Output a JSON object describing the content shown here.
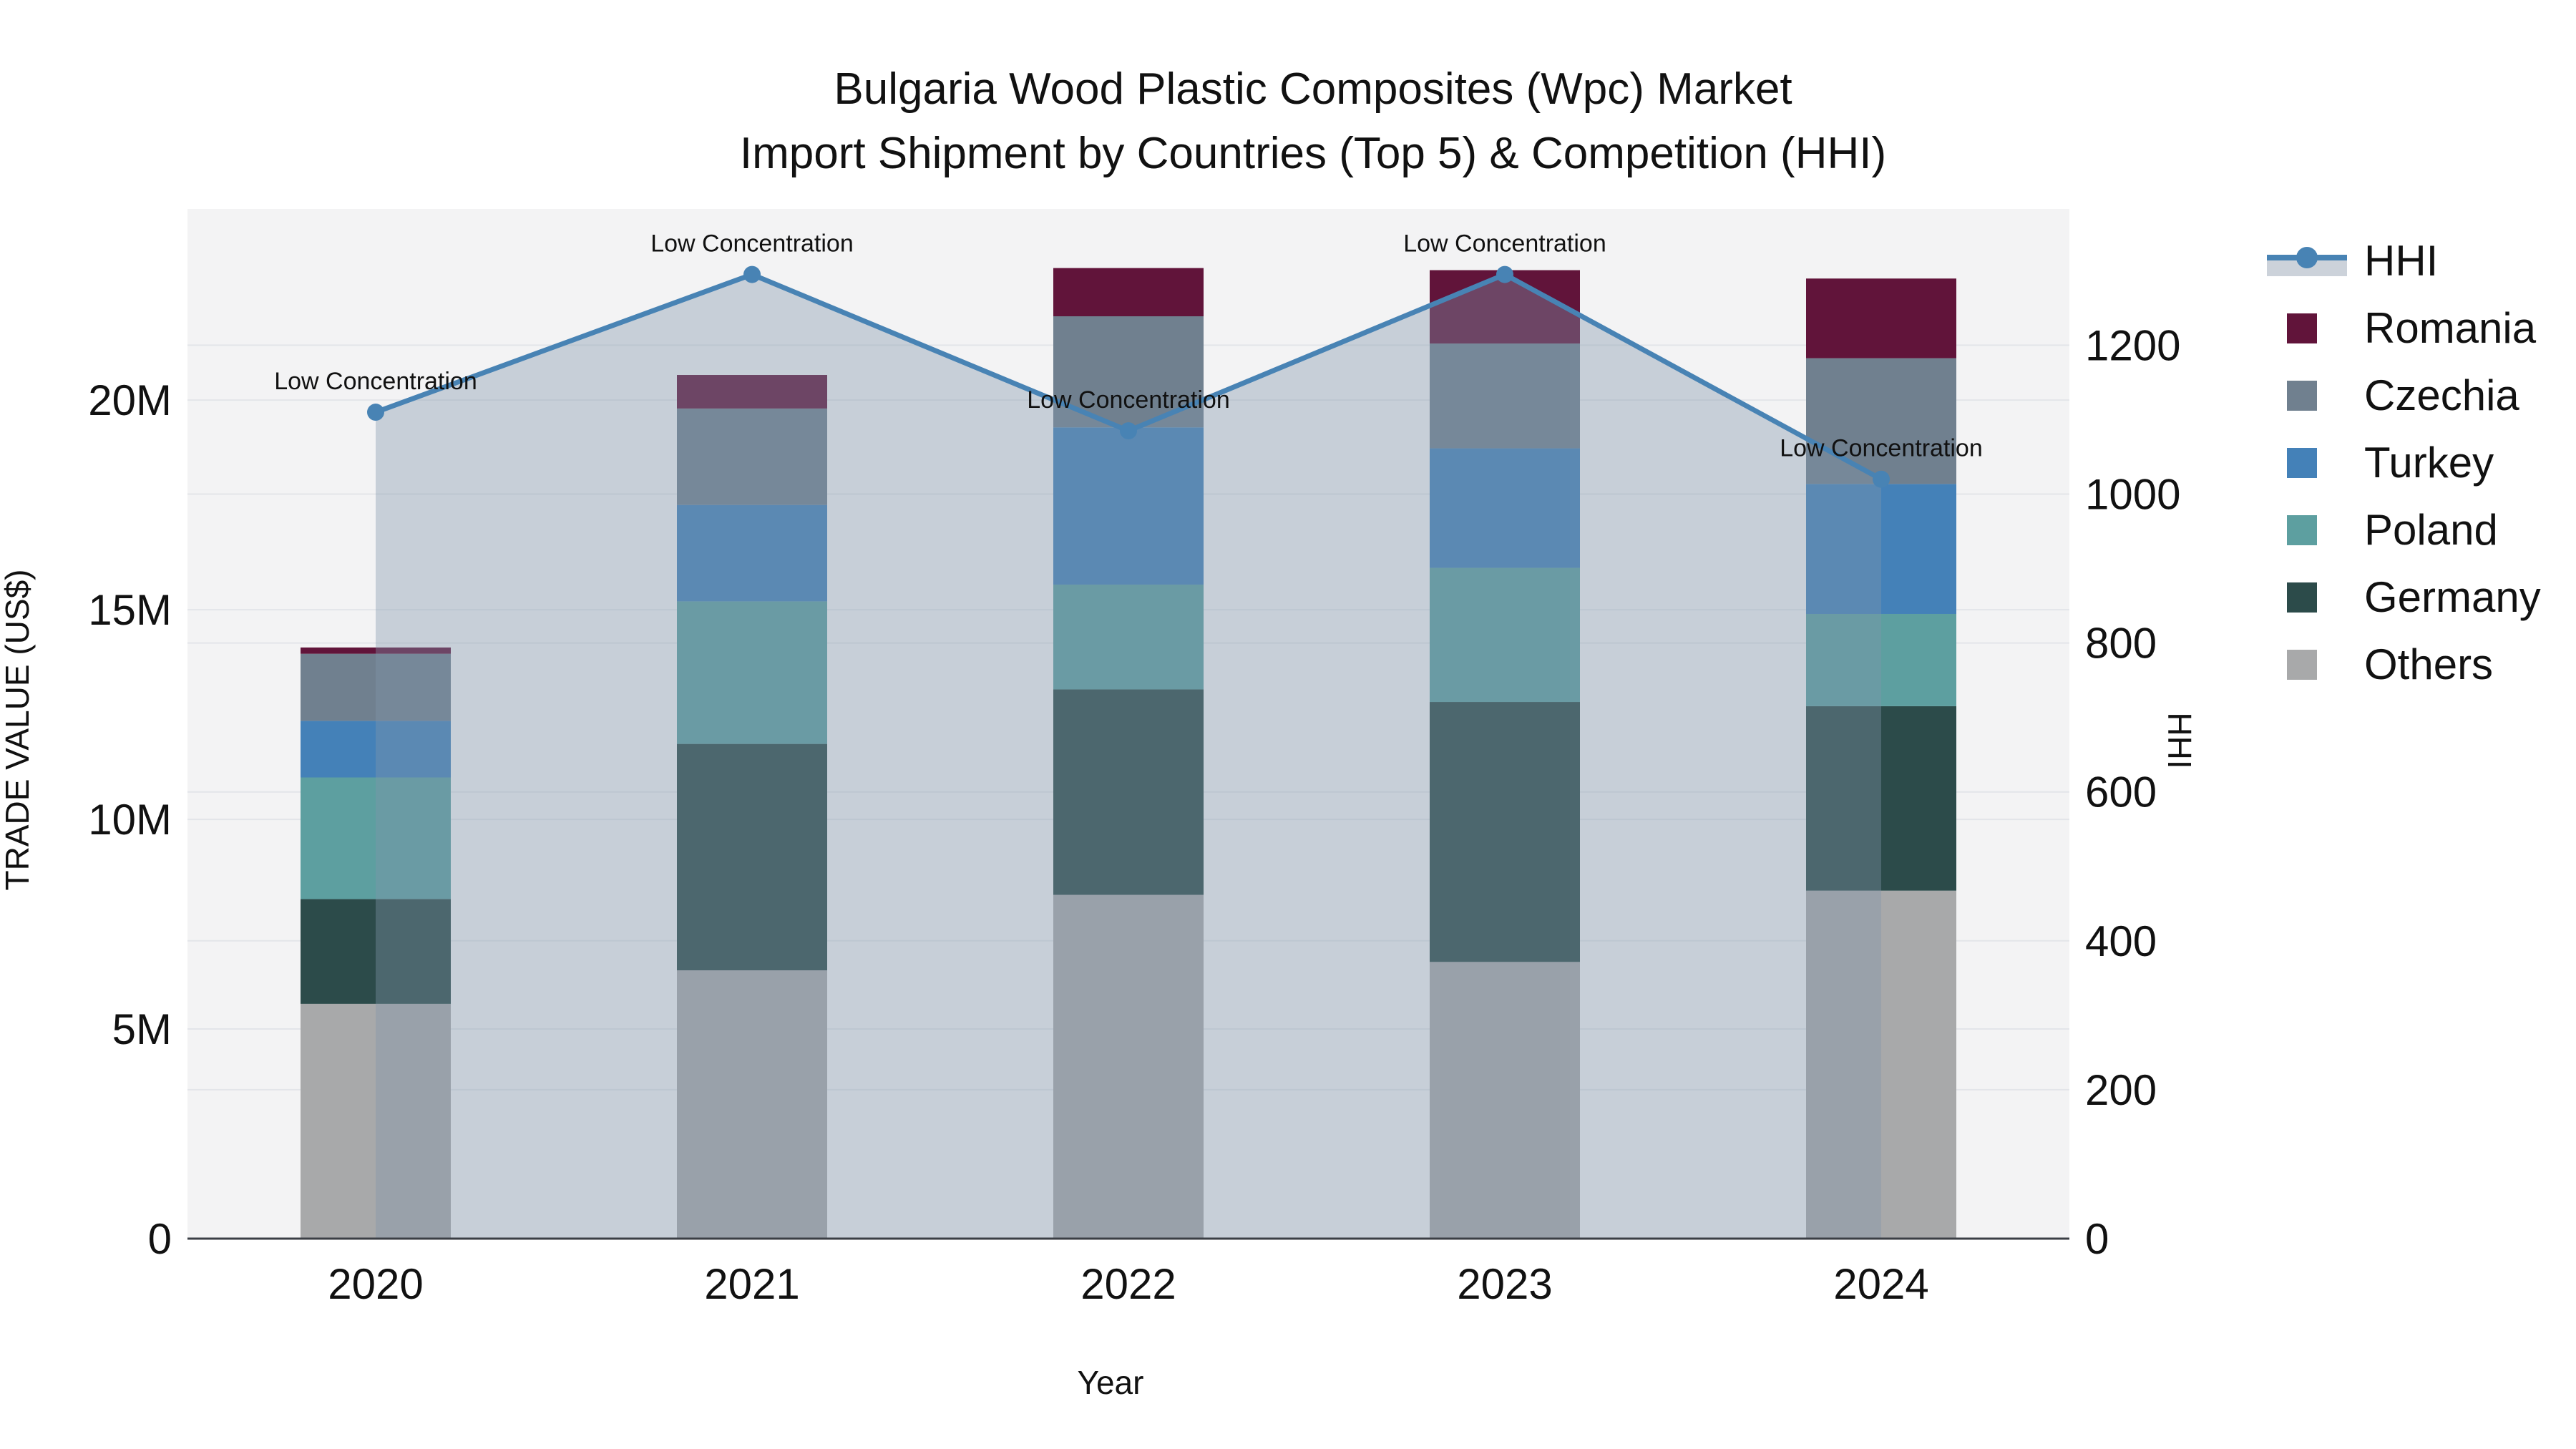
{
  "title": {
    "line1": "Bulgaria Wood Plastic Composites (Wpc) Market",
    "line2": "Import Shipment by Countries (Top 5) & Competition (HHI)"
  },
  "colors": {
    "hhi_line": "#4883b4",
    "hhi_area_fill": "rgba(130,150,170,0.38)",
    "hhi_area_legend": "#ccd2da",
    "plot_bg": "#f3f3f4",
    "grid": "#e3e5e9",
    "axis_line": "#3b3f45",
    "text": "#111111"
  },
  "legend": {
    "items": [
      {
        "label": "HHI",
        "type": "line",
        "color": "#4883b4"
      },
      {
        "label": "Romania",
        "type": "square",
        "color": "#61143a"
      },
      {
        "label": "Czechia",
        "type": "square",
        "color": "#70808f"
      },
      {
        "label": "Turkey",
        "type": "square",
        "color": "#4481b8"
      },
      {
        "label": "Poland",
        "type": "square",
        "color": "#5d9fa0"
      },
      {
        "label": "Germany",
        "type": "square",
        "color": "#2c4b4a"
      },
      {
        "label": "Others",
        "type": "square",
        "color": "#a8a9aa"
      }
    ]
  },
  "axes": {
    "left": {
      "title": "TRADE VALUE (US$)",
      "ticks": [
        {
          "label": "0",
          "v": 0
        },
        {
          "label": "5M",
          "v": 5
        },
        {
          "label": "10M",
          "v": 10
        },
        {
          "label": "15M",
          "v": 15
        },
        {
          "label": "20M",
          "v": 20
        }
      ]
    },
    "right": {
      "title": "HHI",
      "ticks": [
        {
          "label": "0",
          "v": 0
        },
        {
          "label": "200",
          "v": 200
        },
        {
          "label": "400",
          "v": 400
        },
        {
          "label": "600",
          "v": 600
        },
        {
          "label": "800",
          "v": 800
        },
        {
          "label": "1000",
          "v": 1000
        },
        {
          "label": "1200",
          "v": 1200
        }
      ]
    },
    "x": {
      "title": "Year"
    }
  },
  "chart_data": {
    "type": [
      "bar",
      "line"
    ],
    "title": "Bulgaria Wood Plastic Composites (Wpc) Market Import Shipment by Countries (Top 5) & Competition (HHI)",
    "categories": [
      "2020",
      "2021",
      "2022",
      "2023",
      "2024"
    ],
    "stack_order_note": "series listed bottom-to-top of stack; values in millions US$",
    "series": [
      {
        "name": "Others",
        "color": "#a8a9aa",
        "values": [
          5.6,
          6.4,
          8.2,
          6.6,
          8.3
        ]
      },
      {
        "name": "Germany",
        "color": "#2c4b4a",
        "values": [
          2.5,
          5.4,
          4.9,
          6.2,
          4.4
        ]
      },
      {
        "name": "Poland",
        "color": "#5d9fa0",
        "values": [
          2.9,
          3.4,
          2.5,
          3.2,
          2.2
        ]
      },
      {
        "name": "Turkey",
        "color": "#4481b8",
        "values": [
          1.35,
          2.3,
          3.75,
          2.85,
          3.1
        ]
      },
      {
        "name": "Czechia",
        "color": "#70808f",
        "values": [
          1.6,
          2.3,
          2.65,
          2.5,
          3.0
        ]
      },
      {
        "name": "Romania",
        "color": "#61143a",
        "values": [
          0.15,
          0.8,
          1.15,
          1.75,
          1.9
        ]
      }
    ],
    "hhi": {
      "name": "HHI",
      "color": "#4883b4",
      "values": [
        1110,
        1295,
        1085,
        1295,
        1020
      ],
      "annotations": [
        "Low Concentration",
        "Low Concentration",
        "Low Concentration",
        "Low Concentration",
        "Low Concentration"
      ]
    },
    "xlabel": "Year",
    "ylabel": "TRADE VALUE (US$)",
    "y2label": "HHI",
    "ylim_millions": [
      0,
      24.56
    ],
    "y2lim": [
      0,
      1383
    ],
    "grid": true,
    "legend_position": "right",
    "bar_mode": "stacked"
  }
}
